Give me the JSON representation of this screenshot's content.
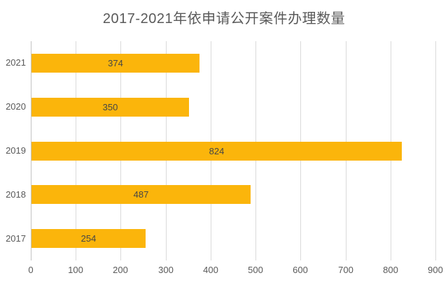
{
  "chart_data": {
    "type": "bar",
    "orientation": "horizontal",
    "title": "2017-2021年依申请公开案件办理数量",
    "categories": [
      "2021",
      "2020",
      "2019",
      "2018",
      "2017"
    ],
    "values": [
      374,
      350,
      824,
      487,
      254
    ],
    "xlabel": "",
    "ylabel": "",
    "xlim": [
      0,
      900
    ],
    "x_ticks": [
      0,
      100,
      200,
      300,
      400,
      500,
      600,
      700,
      800,
      900
    ],
    "grid": true,
    "legend": false,
    "data_labels": "centered-inside-bar",
    "colors": {
      "bar": "#FBB50B",
      "title_text": "#595959",
      "axis_text": "#595959",
      "data_label_text": "#464646",
      "gridline": "#DADADA",
      "axis_line": "#C3C3C3",
      "background": "#FFFFFF"
    }
  }
}
